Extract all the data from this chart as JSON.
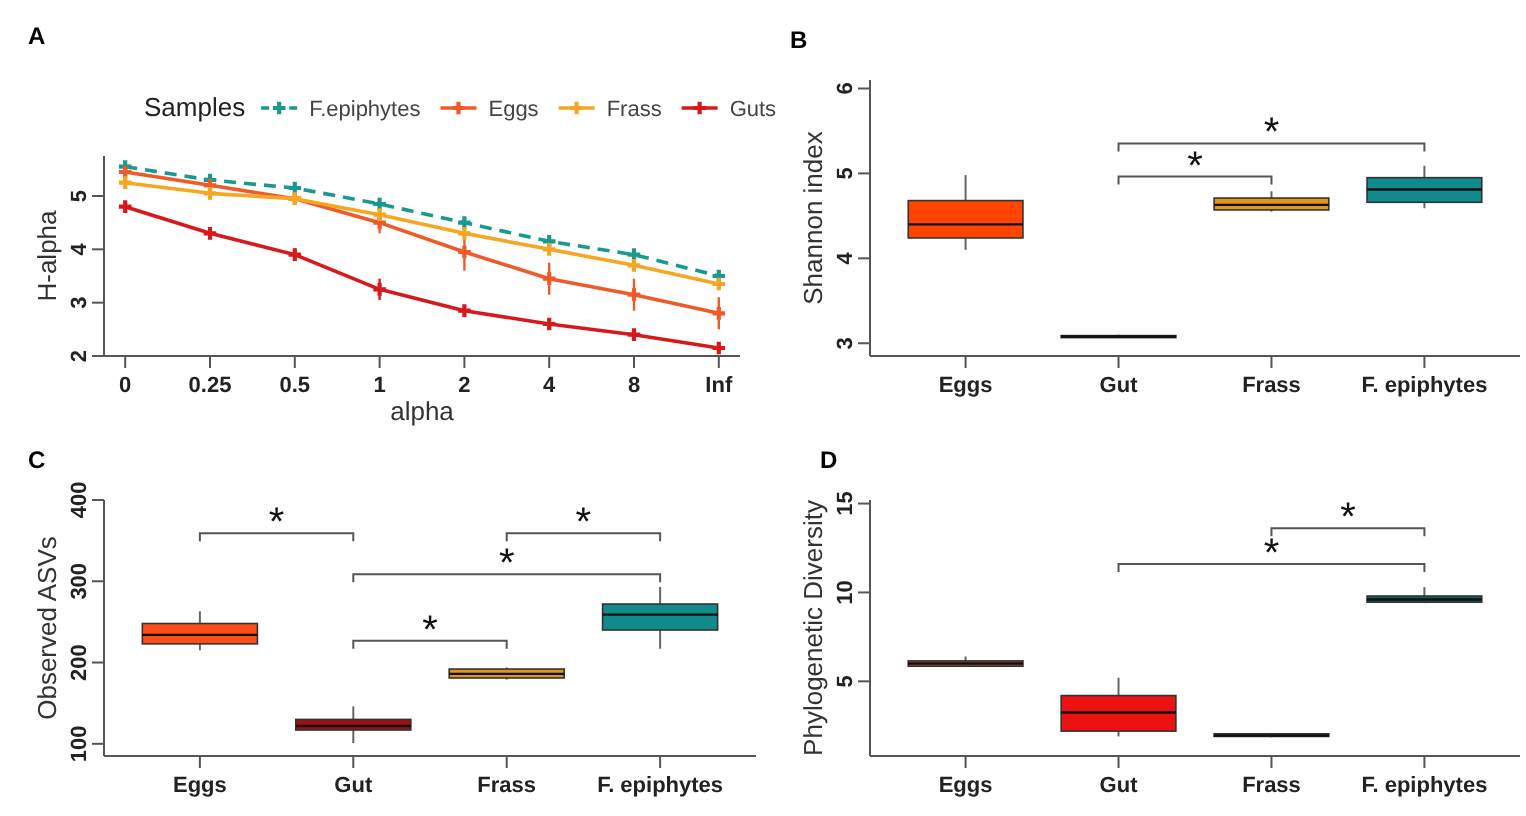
{
  "chart_data": [
    {
      "type": "line",
      "title": "A",
      "xlabel": "alpha",
      "ylabel": "H-alpha",
      "legend_title": "Samples",
      "legend": "top",
      "marker": "cross",
      "categories": [
        "0",
        "0.25",
        "0.5",
        "1",
        "2",
        "4",
        "8",
        "Inf"
      ],
      "ylim": [
        2,
        5.75
      ],
      "yticks": [
        2,
        3,
        4,
        5
      ],
      "series": [
        {
          "name": "F.epiphytes",
          "color": "#1a9a8f",
          "line_style": "dashed",
          "values": [
            5.55,
            5.3,
            5.15,
            4.85,
            4.5,
            4.15,
            3.9,
            3.5
          ],
          "errors": [
            0.05,
            0.05,
            0.07,
            0.1,
            0.1,
            0.1,
            0.1,
            0.1
          ]
        },
        {
          "name": "Eggs",
          "color": "#f05a28",
          "line_style": "solid",
          "values": [
            5.45,
            5.2,
            4.95,
            4.5,
            3.95,
            3.45,
            3.15,
            2.8
          ],
          "errors": [
            0.05,
            0.05,
            0.1,
            0.2,
            0.35,
            0.3,
            0.3,
            0.3
          ]
        },
        {
          "name": "Frass",
          "color": "#f5a623",
          "line_style": "solid",
          "values": [
            5.25,
            5.05,
            4.95,
            4.65,
            4.3,
            4.0,
            3.7,
            3.35
          ],
          "errors": [
            0.03,
            0.05,
            0.05,
            0.08,
            0.08,
            0.08,
            0.08,
            0.08
          ]
        },
        {
          "name": "Guts",
          "color": "#d7191c",
          "line_style": "solid",
          "values": [
            4.8,
            4.3,
            3.9,
            3.25,
            2.85,
            2.6,
            2.4,
            2.15
          ],
          "errors": [
            0.05,
            0.07,
            0.12,
            0.2,
            0.1,
            0.05,
            0.05,
            0.03
          ]
        }
      ]
    },
    {
      "type": "box",
      "title": "B",
      "ylabel": "Shannon index",
      "legend": false,
      "annotations": [
        "*",
        "*"
      ],
      "categories": [
        "Eggs",
        "Gut",
        "Frass",
        "F. epiphytes"
      ],
      "colors": [
        "#ff4500",
        "#111111",
        "#e0951f",
        "#108a8a"
      ],
      "ylim": [
        2.85,
        6.1
      ],
      "yticks": [
        3,
        4,
        5,
        6
      ],
      "boxes": [
        {
          "low": 4.1,
          "q1": 4.24,
          "median": 4.4,
          "q3": 4.68,
          "high": 4.98
        },
        {
          "low": 3.07,
          "q1": 3.07,
          "median": 3.08,
          "q3": 3.09,
          "high": 3.1
        },
        {
          "low": 4.55,
          "q1": 4.57,
          "median": 4.63,
          "q3": 4.71,
          "high": 4.79
        },
        {
          "low": 4.59,
          "q1": 4.66,
          "median": 4.81,
          "q3": 4.95,
          "high": 5.09
        }
      ]
    },
    {
      "type": "box",
      "title": "C",
      "ylabel": "Observed ASVs",
      "legend": false,
      "annotations": [
        "*",
        "*",
        "*",
        "*"
      ],
      "categories": [
        "Eggs",
        "Gut",
        "Frass",
        "F. epiphytes"
      ],
      "colors": [
        "#ff4d1a",
        "#a01010",
        "#e0951f",
        "#108a8a"
      ],
      "ylim": [
        85,
        400
      ],
      "yticks": [
        100,
        200,
        300,
        400
      ],
      "boxes": [
        {
          "low": 215,
          "q1": 223,
          "median": 234,
          "q3": 248,
          "high": 263
        },
        {
          "low": 101,
          "q1": 117,
          "median": 122,
          "q3": 130,
          "high": 146
        },
        {
          "low": 179,
          "q1": 181,
          "median": 186,
          "q3": 192,
          "high": 194
        },
        {
          "low": 217,
          "q1": 240,
          "median": 259,
          "q3": 272,
          "high": 293
        }
      ]
    },
    {
      "type": "box",
      "title": "D",
      "ylabel": "Phylogenetic Diversity",
      "legend": false,
      "annotations": [
        "*",
        "*"
      ],
      "categories": [
        "Eggs",
        "Gut",
        "Frass",
        "F. epiphytes"
      ],
      "colors": [
        "#b5523b",
        "#ee1111",
        "#8b5a3c",
        "#0e5c5c"
      ],
      "ylim": [
        0.8,
        15.2
      ],
      "yticks": [
        5,
        10,
        15
      ],
      "boxes": [
        {
          "low": 5.8,
          "q1": 5.85,
          "median": 6.0,
          "q3": 6.15,
          "high": 6.4
        },
        {
          "low": 1.9,
          "q1": 2.2,
          "median": 3.25,
          "q3": 4.2,
          "high": 5.2
        },
        {
          "low": 1.85,
          "q1": 1.9,
          "median": 1.95,
          "q3": 2.05,
          "high": 2.1
        },
        {
          "low": 9.4,
          "q1": 9.45,
          "median": 9.6,
          "q3": 9.8,
          "high": 10.3
        }
      ]
    }
  ]
}
